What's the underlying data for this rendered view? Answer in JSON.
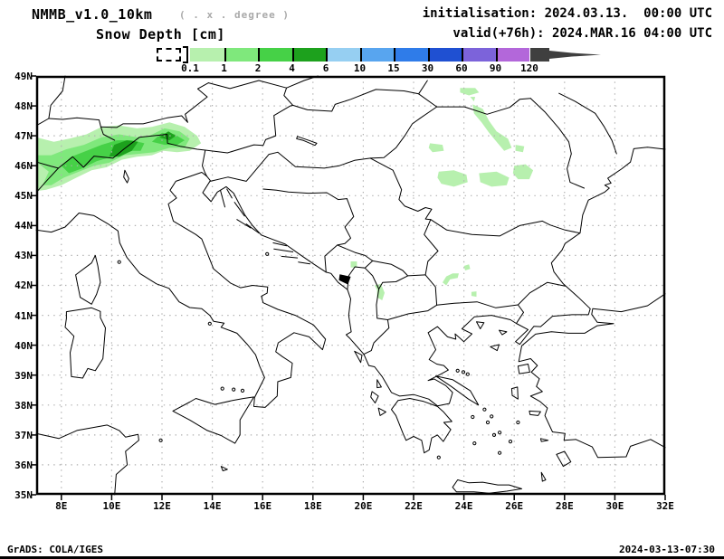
{
  "header": {
    "model": "NMMB_v1.0_10km",
    "grid_note": "( . x . degree )",
    "variable": "Snow Depth [cm]",
    "init_line": "initialisation: 2024.03.13.  00:00 UTC",
    "valid_line": "valid(+76h): 2024.MAR.16 04:00 UTC"
  },
  "legend": {
    "bin_edges": [
      "0.1",
      "1",
      "2",
      "4",
      "6",
      "10",
      "15",
      "30",
      "60",
      "90",
      "120"
    ],
    "bin_colors": [
      "#b7f0ae",
      "#7fe87c",
      "#46d147",
      "#1da11d",
      "#96cff2",
      "#58a5ef",
      "#2f7ce9",
      "#1f50d2",
      "#7c63da",
      "#b367da"
    ],
    "overflow_arrow_color": "#3f3f3f",
    "below_min_box": "white dashed (no snow / below 0.1 cm)"
  },
  "axes": {
    "lat_ticks": [
      "49N",
      "48N",
      "47N",
      "46N",
      "45N",
      "44N",
      "43N",
      "42N",
      "41N",
      "40N",
      "39N",
      "38N",
      "37N",
      "36N",
      "35N"
    ],
    "lon_ticks": [
      "8E",
      "10E",
      "12E",
      "14E",
      "16E",
      "18E",
      "20E",
      "22E",
      "24E",
      "26E",
      "28E",
      "30E",
      "32E"
    ],
    "lat_range_deg": [
      35,
      49
    ],
    "lon_range_deg": [
      7,
      32
    ]
  },
  "footer": {
    "left": "GrADS: COLA/IGES",
    "right": "2024-03-13-07:30"
  }
}
